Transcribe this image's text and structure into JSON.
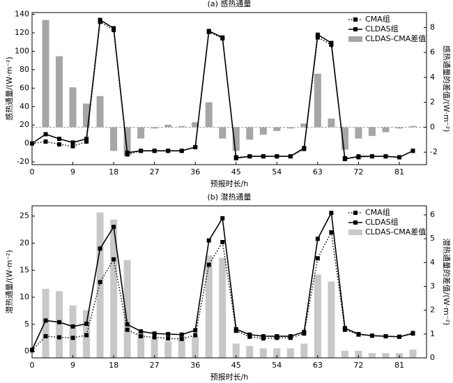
{
  "chart_data": [
    {
      "type": "combo",
      "title": "(a) 感热通量",
      "xlabel": "预报时长/h",
      "ylabel": "感热通量/(W·m⁻²)",
      "y2label": "感热通量的差值/(W·m⁻²)",
      "x": [
        0,
        3,
        6,
        9,
        12,
        15,
        18,
        21,
        24,
        27,
        30,
        33,
        36,
        39,
        42,
        45,
        48,
        51,
        54,
        57,
        60,
        63,
        66,
        69,
        72,
        75,
        78,
        81,
        84
      ],
      "xlim": [
        0,
        87
      ],
      "xticks": [
        0,
        9,
        18,
        27,
        36,
        45,
        54,
        63,
        72,
        81
      ],
      "ylim": [
        -23,
        142
      ],
      "yticks": [
        -20,
        0,
        20,
        40,
        60,
        80,
        100,
        120,
        140
      ],
      "y2lim": [
        -3,
        9.2
      ],
      "y2ticks": [
        -2,
        0,
        2,
        4,
        6,
        8
      ],
      "legend": "upper right",
      "series": [
        {
          "name": "CMA组",
          "kind": "line",
          "style": "dotted",
          "color": "#000000",
          "values": [
            0,
            2,
            -1,
            -3,
            2,
            132,
            123,
            -12,
            -8,
            -8,
            -8,
            -8,
            -4,
            121,
            114,
            -15,
            -14,
            -14,
            -14,
            -14,
            -6,
            115,
            107,
            -16,
            -15,
            -14,
            -14,
            -15,
            -8
          ]
        },
        {
          "name": "CLDAS组",
          "kind": "line",
          "style": "solid",
          "color": "#000000",
          "values": [
            0,
            10,
            5,
            1,
            5,
            134,
            125,
            -10,
            -8,
            -8,
            -8,
            -8,
            -4,
            122,
            115,
            -16,
            -14,
            -14,
            -14,
            -14,
            -5,
            118,
            109,
            -17,
            -14,
            -14,
            -14,
            -15,
            -8
          ]
        },
        {
          "name": "CLDAS-CMA差值",
          "kind": "bar",
          "axis": "y2",
          "color": "#a6a6a6",
          "values": [
            null,
            8.6,
            5.7,
            3.2,
            1.9,
            2.5,
            -1.9,
            -2.3,
            -0.9,
            -0.1,
            0.2,
            0.1,
            0.4,
            2.0,
            -0.9,
            -1.9,
            -1.0,
            -0.6,
            -0.3,
            -0.1,
            0.3,
            4.3,
            0.7,
            -1.8,
            -0.9,
            -0.7,
            -0.4,
            -0.1,
            0.1
          ]
        }
      ]
    },
    {
      "type": "combo",
      "title": "(b) 潜热通量",
      "xlabel": "预报时长/h",
      "ylabel": "潜热通量/(W·m⁻²)",
      "y2label": "潜热通量的差值/(W·m⁻²)",
      "x": [
        0,
        3,
        6,
        9,
        12,
        15,
        18,
        21,
        24,
        27,
        30,
        33,
        36,
        39,
        42,
        45,
        48,
        51,
        54,
        57,
        60,
        63,
        66,
        69,
        72,
        75,
        78,
        81,
        84
      ],
      "xlim": [
        0,
        87
      ],
      "xticks": [
        0,
        9,
        18,
        27,
        36,
        45,
        54,
        63,
        72,
        81
      ],
      "ylim": [
        -1.2,
        26.9
      ],
      "yticks": [
        0,
        5,
        10,
        15,
        20,
        25
      ],
      "y2lim": [
        0,
        6.38
      ],
      "y2ticks": [
        0,
        1,
        2,
        3,
        4,
        5,
        6
      ],
      "legend": "upper right",
      "series": [
        {
          "name": "CMA组",
          "kind": "line",
          "style": "dotted",
          "color": "#000000",
          "values": [
            0.2,
            2.8,
            2.6,
            2.5,
            3.0,
            12.8,
            17,
            4,
            2.8,
            2.6,
            2.4,
            2.3,
            3.0,
            16,
            20.2,
            3.8,
            2.7,
            2.4,
            2.5,
            2.5,
            3.3,
            17.2,
            22,
            4.0,
            3.1,
            2.9,
            2.8,
            2.7,
            3.4
          ]
        },
        {
          "name": "CLDAS组",
          "kind": "line",
          "style": "solid",
          "color": "#000000",
          "values": [
            0.3,
            5.7,
            5.4,
            4.6,
            5.1,
            19,
            23,
            5,
            3.7,
            3.3,
            3.2,
            3.1,
            3.9,
            20.5,
            24.6,
            4.1,
            3.1,
            2.8,
            2.8,
            2.8,
            3.6,
            20.8,
            25.6,
            4.3,
            3.2,
            2.9,
            2.8,
            2.7,
            3.3
          ]
        },
        {
          "name": "CLDAS-CMA差值",
          "kind": "bar",
          "axis": "y2",
          "color": "#c8c8c8",
          "values": [
            null,
            2.9,
            2.8,
            2.2,
            2.0,
            6.1,
            5.8,
            4.1,
            1.1,
            0.8,
            0.7,
            0.9,
            0.9,
            4.3,
            4.2,
            0.6,
            0.5,
            0.4,
            0.4,
            0.4,
            0.6,
            3.5,
            3.2,
            0.3,
            0.3,
            0.2,
            0.2,
            0.2,
            0.35
          ]
        }
      ]
    }
  ]
}
